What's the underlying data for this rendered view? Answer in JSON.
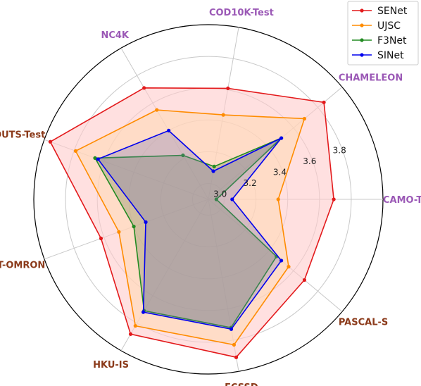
{
  "chart_data": {
    "type": "radar",
    "axes": [
      {
        "name": "CAMO-Test",
        "color": "#9b59b6"
      },
      {
        "name": "CHAMELEON",
        "color": "#9b59b6"
      },
      {
        "name": "COD10K-Test",
        "color": "#9b59b6"
      },
      {
        "name": "NC4K",
        "color": "#9b59b6"
      },
      {
        "name": "DUTS-Test",
        "color": "#8b3a1a"
      },
      {
        "name": "DUT-OMRON",
        "color": "#8b3a1a"
      },
      {
        "name": "HKU-IS",
        "color": "#8b3a1a"
      },
      {
        "name": "ECSSD",
        "color": "#8b3a1a"
      },
      {
        "name": "PASCAL-S",
        "color": "#8b3a1a"
      }
    ],
    "radial_ticks": [
      "3.0",
      "3.2",
      "3.4",
      "3.6",
      "3.8"
    ],
    "rlim": [
      2.9,
      4.0
    ],
    "series": [
      {
        "name": "SENet",
        "color": "#e31a1c",
        "fill": "#ffcccc",
        "fill_opacity": 0.6,
        "values": [
          3.69,
          3.85,
          3.61,
          3.71,
          3.96,
          3.62,
          3.88,
          3.91,
          3.69
        ]
      },
      {
        "name": "UJSC",
        "color": "#ff8c00",
        "fill": "#ffd9b3",
        "fill_opacity": 0.55,
        "values": [
          3.34,
          3.69,
          3.44,
          3.55,
          3.79,
          3.5,
          3.82,
          3.83,
          3.56
        ]
      },
      {
        "name": "F3Net",
        "color": "#228b22",
        "fill": "#7a8a5a",
        "fill_opacity": 0.35,
        "values": [
          2.95,
          3.5,
          3.11,
          3.22,
          3.66,
          3.4,
          3.71,
          3.72,
          3.46
        ]
      },
      {
        "name": "SINet",
        "color": "#0000ee",
        "fill": "#6f6fb3",
        "fill_opacity": 0.3,
        "values": [
          3.05,
          3.5,
          3.08,
          3.4,
          3.64,
          3.32,
          3.72,
          3.73,
          3.5
        ]
      }
    ],
    "legend": "top-right",
    "grid": true
  }
}
